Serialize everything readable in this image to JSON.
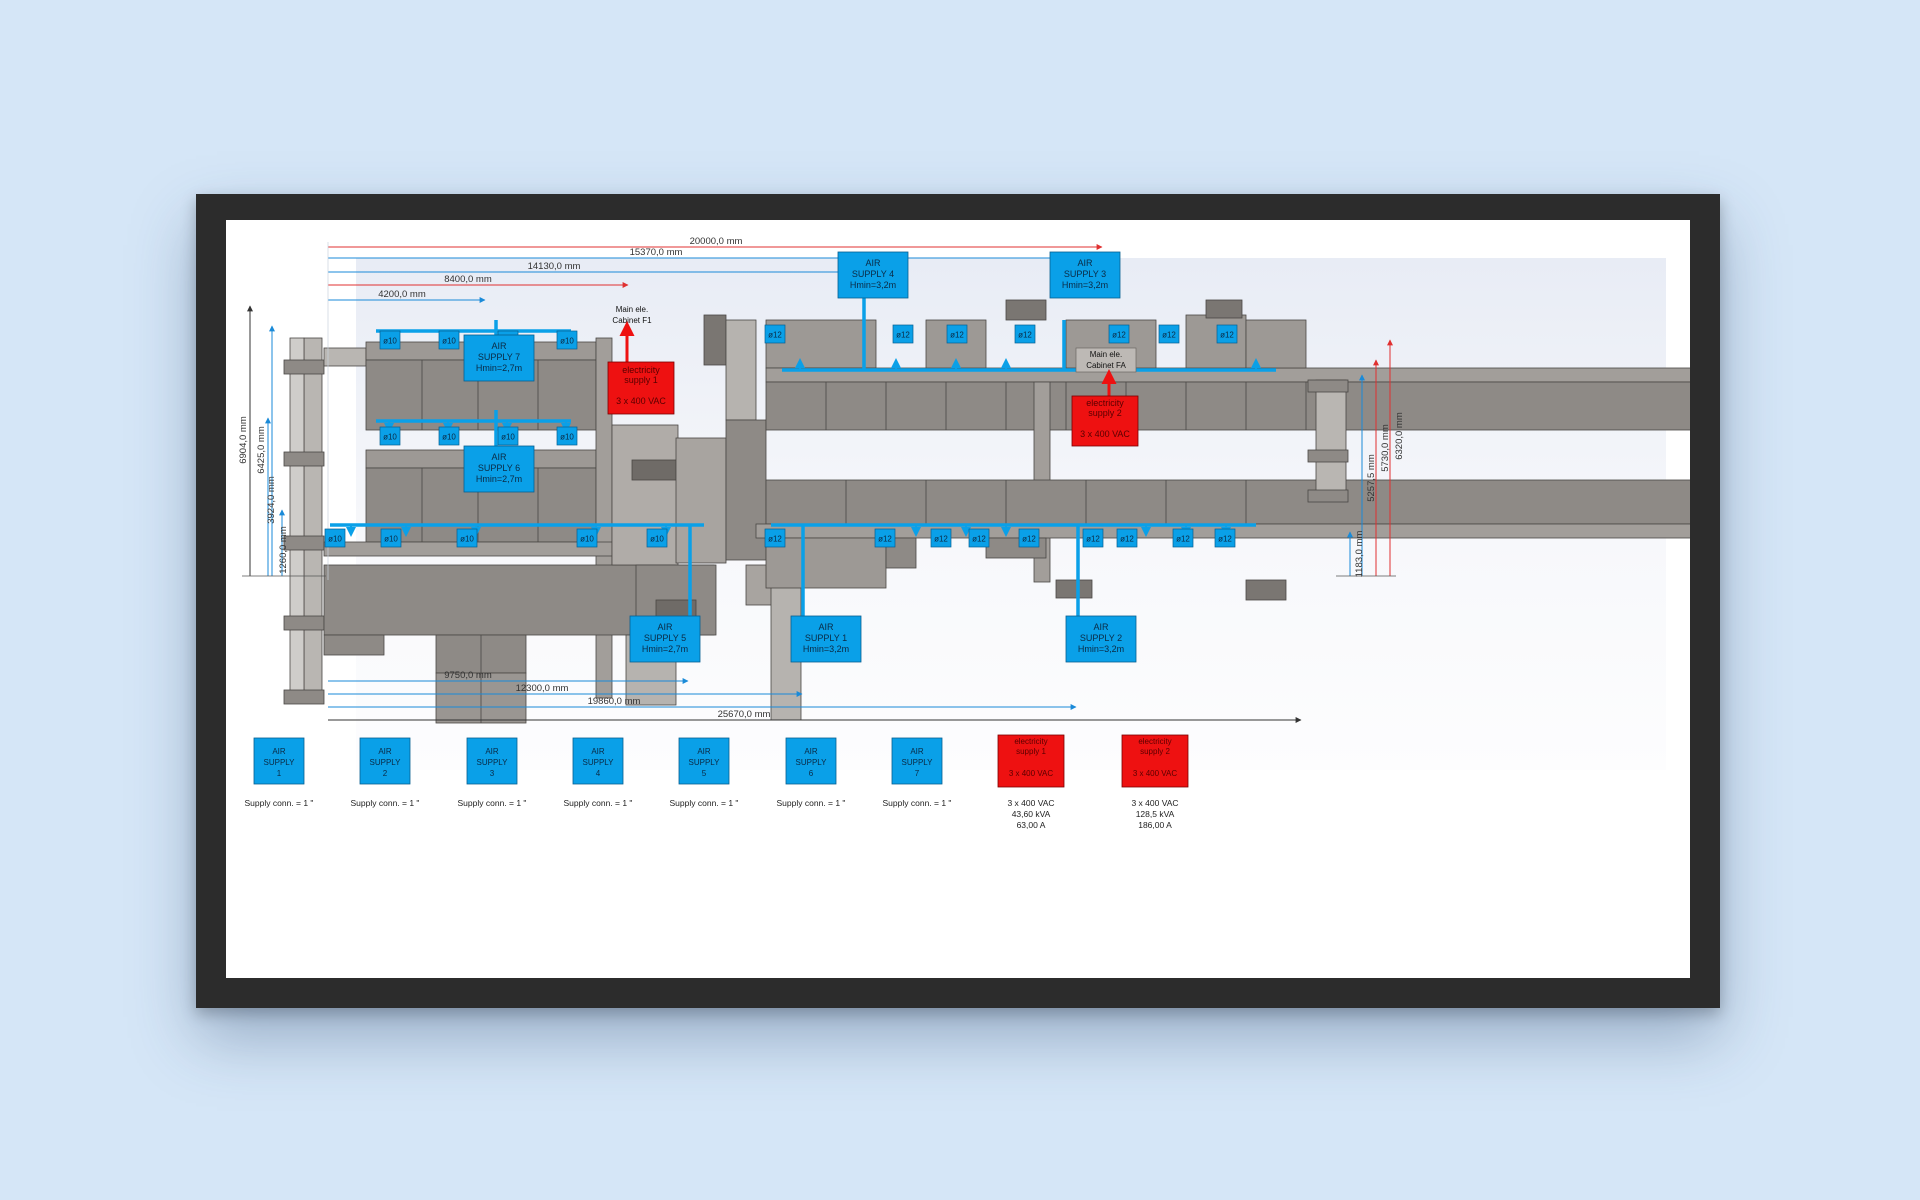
{
  "colors": {
    "air": "#0aa0e8",
    "electric": "#ee1111",
    "machine": "#8e8a86",
    "dim_red": "#e03030",
    "dim_blue": "#1a8ad8"
  },
  "dimensions_top": [
    "20000,0 mm",
    "15370,0 mm",
    "14130,0 mm",
    "8400,0 mm",
    "4200,0 mm"
  ],
  "dimensions_bottom": [
    "9750,0 mm",
    "12300,0 mm",
    "19860,0 mm",
    "25670,0 mm"
  ],
  "dimensions_left": [
    "6904,0 mm",
    "6425,0 mm",
    "3924,0 mm",
    "1260,0 mm"
  ],
  "dimensions_right": [
    "5257,5 mm",
    "5730,0 mm",
    "6320,0 mm",
    "1183,0 mm"
  ],
  "cabinets": {
    "cabinet_f1": [
      "Main ele.",
      "Cabinet F1"
    ],
    "cabinet_fa": [
      "Main ele.",
      "Cabinet FA"
    ]
  },
  "air_supplies": {
    "s1": [
      "AIR",
      "SUPPLY 1",
      "Hmin=3,2m"
    ],
    "s2": [
      "AIR",
      "SUPPLY 2",
      "Hmin=3,2m"
    ],
    "s3": [
      "AIR",
      "SUPPLY 3",
      "Hmin=3,2m"
    ],
    "s4": [
      "AIR",
      "SUPPLY 4",
      "Hmin=3,2m"
    ],
    "s5": [
      "AIR",
      "SUPPLY 5",
      "Hmin=2,7m"
    ],
    "s6": [
      "AIR",
      "SUPPLY 6",
      "Hmin=2,7m"
    ],
    "s7": [
      "AIR",
      "SUPPLY 7",
      "Hmin=2,7m"
    ]
  },
  "electricity_supplies": {
    "e1": [
      "electricity",
      "supply 1",
      "3 x 400 VAC"
    ],
    "e2": [
      "electricity",
      "supply 2",
      "3 x 400 VAC"
    ]
  },
  "ports": {
    "d10": "ø10",
    "d12": "ø12"
  },
  "legend": {
    "air": [
      {
        "lines": [
          "AIR",
          "SUPPLY",
          "1"
        ],
        "caption": "Supply conn. = 1 \""
      },
      {
        "lines": [
          "AIR",
          "SUPPLY",
          "2"
        ],
        "caption": "Supply conn. = 1 \""
      },
      {
        "lines": [
          "AIR",
          "SUPPLY",
          "3"
        ],
        "caption": "Supply conn. = 1 \""
      },
      {
        "lines": [
          "AIR",
          "SUPPLY",
          "4"
        ],
        "caption": "Supply conn. = 1 \""
      },
      {
        "lines": [
          "AIR",
          "SUPPLY",
          "5"
        ],
        "caption": "Supply conn. = 1 \""
      },
      {
        "lines": [
          "AIR",
          "SUPPLY",
          "6"
        ],
        "caption": "Supply conn. = 1 \""
      },
      {
        "lines": [
          "AIR",
          "SUPPLY",
          "7"
        ],
        "caption": "Supply conn. = 1 \""
      }
    ],
    "electric": [
      {
        "lines": [
          "electricity",
          "supply 1",
          "3 x 400 VAC"
        ],
        "caption": [
          "3 x 400 VAC",
          "43,60 kVA",
          "63,00 A"
        ]
      },
      {
        "lines": [
          "electricity",
          "supply 2",
          "3 x 400 VAC"
        ],
        "caption": [
          "3 x 400 VAC",
          "128,5 kVA",
          "186,00 A"
        ]
      }
    ]
  }
}
